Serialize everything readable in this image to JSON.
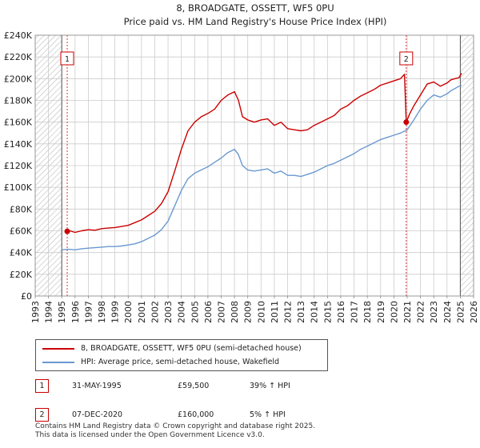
{
  "title_line1": "8, BROADGATE, OSSETT, WF5 0PU",
  "title_line2": "Price paid vs. HM Land Registry's House Price Index (HPI)",
  "colors": {
    "property": "#cc0000",
    "hpi": "#6a99d0",
    "grid": "#cccccc",
    "hatch": "#bbbbbb",
    "marker_line": "#dd3333"
  },
  "chart_data": {
    "type": "line",
    "title": "8, BROADGATE, OSSETT, WF5 0PU",
    "subtitle": "Price paid vs. HM Land Registry's House Price Index (HPI)",
    "xlim": [
      1993,
      2026
    ],
    "ylim": [
      0,
      240000
    ],
    "x_ticks": [
      1993,
      1994,
      1995,
      1996,
      1997,
      1998,
      1999,
      2000,
      2001,
      2002,
      2003,
      2004,
      2005,
      2006,
      2007,
      2008,
      2009,
      2010,
      2011,
      2012,
      2013,
      2014,
      2015,
      2016,
      2017,
      2018,
      2019,
      2020,
      2021,
      2022,
      2023,
      2024,
      2025,
      2026
    ],
    "y_ticks": [
      {
        "value": 0,
        "label": "£0"
      },
      {
        "value": 20000,
        "label": "£20K"
      },
      {
        "value": 40000,
        "label": "£40K"
      },
      {
        "value": 60000,
        "label": "£60K"
      },
      {
        "value": 80000,
        "label": "£80K"
      },
      {
        "value": 100000,
        "label": "£100K"
      },
      {
        "value": 120000,
        "label": "£120K"
      },
      {
        "value": 140000,
        "label": "£140K"
      },
      {
        "value": 160000,
        "label": "£160K"
      },
      {
        "value": 180000,
        "label": "£180K"
      },
      {
        "value": 200000,
        "label": "£200K"
      },
      {
        "value": 220000,
        "label": "£220K"
      },
      {
        "value": 240000,
        "label": "£240K"
      }
    ],
    "hatched_ranges": [
      [
        1993,
        1995.0
      ],
      [
        2025.0,
        2026
      ]
    ],
    "series": [
      {
        "name": "8, BROADGATE, OSSETT, WF5 0PU (semi-detached house)",
        "color": "#cc0000",
        "x": [
          1995.41,
          1995.6,
          1996,
          1996.5,
          1997,
          1997.5,
          1998,
          1998.5,
          1999,
          1999.5,
          2000,
          2000.5,
          2001,
          2001.5,
          2002,
          2002.5,
          2003,
          2003.5,
          2004,
          2004.5,
          2005,
          2005.5,
          2006,
          2006.5,
          2007,
          2007.5,
          2008,
          2008.3,
          2008.6,
          2009,
          2009.5,
          2010,
          2010.5,
          2011,
          2011.5,
          2012,
          2012.5,
          2013,
          2013.5,
          2014,
          2014.5,
          2015,
          2015.5,
          2016,
          2016.5,
          2017,
          2017.5,
          2018,
          2018.5,
          2019,
          2019.5,
          2020,
          2020.5,
          2020.8,
          2020.93,
          2021.2,
          2021.5,
          2022,
          2022.5,
          2023,
          2023.5,
          2024,
          2024.3,
          2024.6,
          2024.9,
          2025.1
        ],
        "values": [
          59500,
          60000,
          58500,
          60000,
          61000,
          60500,
          62000,
          62500,
          63000,
          64000,
          65000,
          67500,
          70000,
          74000,
          78000,
          85000,
          96000,
          115000,
          135000,
          152000,
          160000,
          165000,
          168000,
          172000,
          180000,
          185000,
          188000,
          180000,
          165000,
          162000,
          160000,
          162000,
          163000,
          157000,
          160000,
          154000,
          153000,
          152000,
          153000,
          157000,
          160000,
          163000,
          166000,
          172000,
          175000,
          180000,
          184000,
          187000,
          190000,
          194000,
          196000,
          198000,
          200000,
          204000,
          160000,
          168000,
          175000,
          185000,
          195000,
          197000,
          193000,
          196000,
          199000,
          200000,
          201000,
          205000
        ]
      },
      {
        "name": "HPI: Average price, semi-detached house, Wakefield",
        "color": "#6a99d0",
        "x": [
          1995.0,
          1995.5,
          1996,
          1996.5,
          1997,
          1997.5,
          1998,
          1998.5,
          1999,
          1999.5,
          2000,
          2000.5,
          2001,
          2001.5,
          2002,
          2002.5,
          2003,
          2003.5,
          2004,
          2004.5,
          2005,
          2005.5,
          2006,
          2006.5,
          2007,
          2007.5,
          2008,
          2008.3,
          2008.6,
          2009,
          2009.5,
          2010,
          2010.5,
          2011,
          2011.5,
          2012,
          2012.5,
          2013,
          2013.5,
          2014,
          2014.5,
          2015,
          2015.5,
          2016,
          2016.5,
          2017,
          2017.5,
          2018,
          2018.5,
          2019,
          2019.5,
          2020,
          2020.5,
          2021,
          2021.5,
          2022,
          2022.5,
          2023,
          2023.5,
          2024,
          2024.3,
          2024.6,
          2024.9,
          2025.1
        ],
        "values": [
          42500,
          43000,
          42500,
          43500,
          44000,
          44500,
          45000,
          45500,
          45500,
          46000,
          47000,
          48000,
          50000,
          53000,
          56000,
          61000,
          69000,
          83000,
          97000,
          108000,
          113000,
          116000,
          119000,
          123000,
          127000,
          132000,
          135000,
          130000,
          120000,
          116000,
          115000,
          116000,
          117000,
          113000,
          115000,
          111000,
          111000,
          110000,
          112000,
          114000,
          117000,
          120000,
          122000,
          125000,
          128000,
          131000,
          135000,
          138000,
          141000,
          144000,
          146000,
          148000,
          150000,
          153000,
          162000,
          172000,
          180000,
          185000,
          183000,
          186000,
          189000,
          191000,
          193000,
          194000
        ]
      }
    ],
    "sale_markers": [
      {
        "label": "1",
        "x": 1995.41,
        "y": 59500
      },
      {
        "label": "2",
        "x": 2020.93,
        "y": 160000
      }
    ]
  },
  "legend": {
    "property_label": "8, BROADGATE, OSSETT, WF5 0PU (semi-detached house)",
    "hpi_label": "HPI: Average price, semi-detached house, Wakefield"
  },
  "sales": [
    {
      "num": "1",
      "date": "31-MAY-1995",
      "price": "£59,500",
      "delta": "39% ↑ HPI"
    },
    {
      "num": "2",
      "date": "07-DEC-2020",
      "price": "£160,000",
      "delta": "5% ↑ HPI"
    }
  ],
  "footer": {
    "line1": "Contains HM Land Registry data © Crown copyright and database right 2025.",
    "line2": "This data is licensed under the Open Government Licence v3.0."
  }
}
